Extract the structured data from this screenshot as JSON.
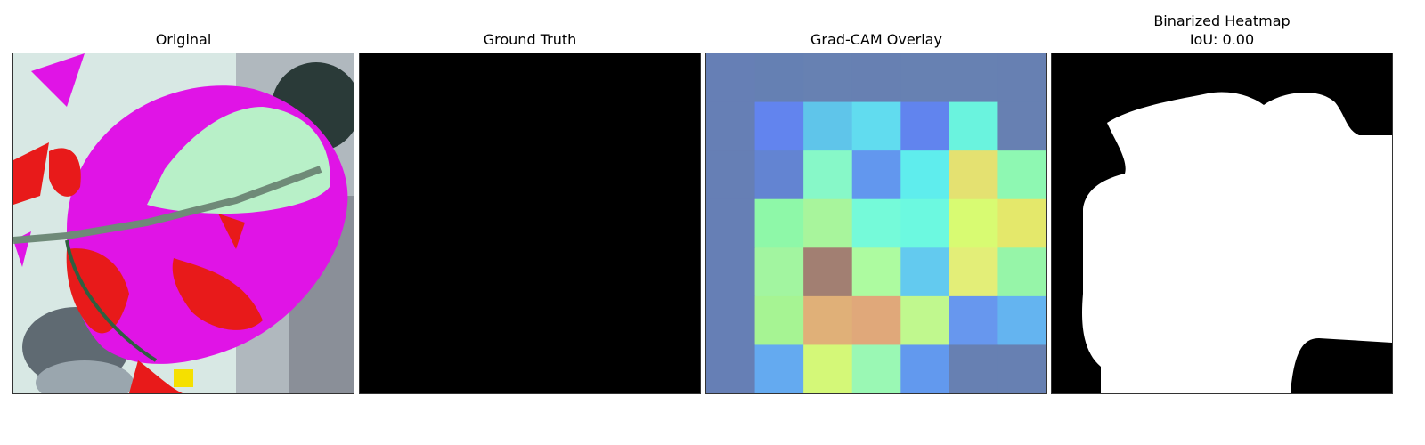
{
  "panels": {
    "original": {
      "title": "Original"
    },
    "ground_truth": {
      "title": "Ground Truth",
      "fill": "#000000"
    },
    "gradcam": {
      "title": "Grad-CAM Overlay",
      "grid_rows": 7,
      "grid_cols": 7,
      "cells": [
        [
          "#667fb5",
          "#6580b3",
          "#6781b2",
          "#6780b2",
          "#6781b2",
          "#6781b2",
          "#6780b2"
        ],
        [
          "#667fb5",
          "#6284ee",
          "#5fc5ea",
          "#61dcef",
          "#6184ee",
          "#6af3de",
          "#6780b2"
        ],
        [
          "#667fb5",
          "#6384d2",
          "#87f8c8",
          "#6297ee",
          "#5feded",
          "#e4e171",
          "#8ef8b2"
        ],
        [
          "#667fb5",
          "#8ef8a8",
          "#a8f59c",
          "#75fad9",
          "#6cf9e0",
          "#d8fb72",
          "#e4e86b"
        ],
        [
          "#667fb5",
          "#a2f5a0",
          "#a27f72",
          "#adfba0",
          "#63caef",
          "#e3ee78",
          "#96f5a8"
        ],
        [
          "#667fb5",
          "#a6f493",
          "#e0b078",
          "#e0a87a",
          "#c0f88e",
          "#6797ee",
          "#64b4f0"
        ],
        [
          "#667fb5",
          "#64aaf0",
          "#d4f878",
          "#9af8b4",
          "#6299ee",
          "#6780b2",
          "#6780b2"
        ]
      ]
    },
    "binarized": {
      "title_line1": "Binarized Heatmap",
      "title_line2": "IoU: 0.00",
      "background": "#000000",
      "foreground": "#ffffff"
    }
  },
  "colors": {
    "leaf_magenta": "#e014e6",
    "leaf_red": "#e81a1a",
    "leaf_pale_green": "#b8f0c8",
    "stem_gray": "#6f8a78",
    "background_light": "#d8e8e4",
    "background_gray": "#8a8f98"
  },
  "icons": {
    "original": "leaf-image",
    "binarized": "binary-mask-image"
  }
}
